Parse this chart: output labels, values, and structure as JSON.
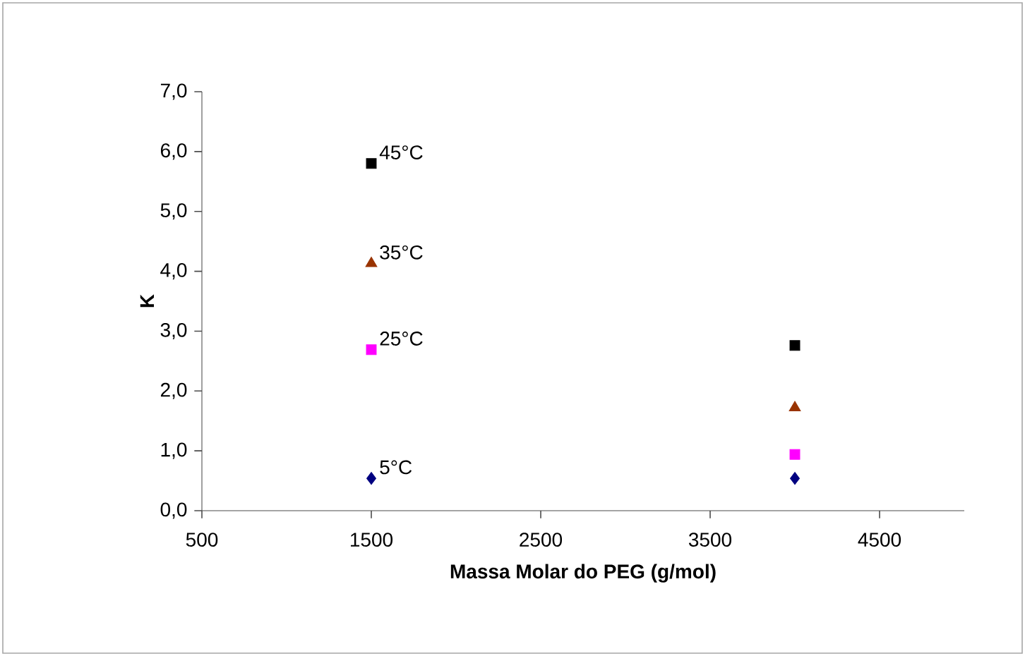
{
  "chart_data": {
    "type": "scatter",
    "xlabel": "Massa Molar do PEG (g/mol)",
    "ylabel": "K",
    "x": [
      1500,
      4000
    ],
    "series": [
      {
        "name": "5°C",
        "color": "#000080",
        "marker": "diamond",
        "values": [
          0.54,
          0.54
        ]
      },
      {
        "name": "25°C",
        "color": "#ff00ff",
        "marker": "square",
        "values": [
          2.69,
          0.94
        ]
      },
      {
        "name": "35°C",
        "color": "#993300",
        "marker": "triangle",
        "values": [
          4.13,
          1.72
        ]
      },
      {
        "name": "45°C",
        "color": "#000000",
        "marker": "square",
        "values": [
          5.8,
          2.76
        ]
      }
    ],
    "xlim": [
      500,
      5000
    ],
    "xticks": [
      500,
      1500,
      2500,
      3500,
      4500
    ],
    "ylim": [
      0,
      7
    ],
    "yticks": [
      {
        "value": 0,
        "label": "0,0"
      },
      {
        "value": 1,
        "label": "1,0"
      },
      {
        "value": 2,
        "label": "2,0"
      },
      {
        "value": 3,
        "label": "3,0"
      },
      {
        "value": 4,
        "label": "4,0"
      },
      {
        "value": 5,
        "label": "5,0"
      },
      {
        "value": 6,
        "label": "6,0"
      },
      {
        "value": 7,
        "label": "7,0"
      }
    ],
    "grid": false
  }
}
